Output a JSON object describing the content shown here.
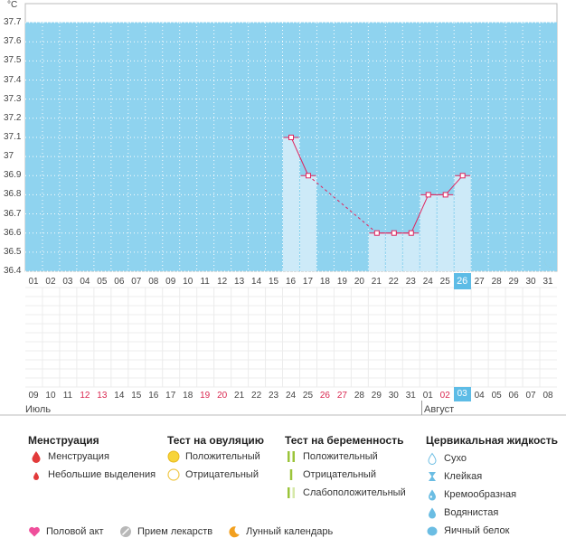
{
  "chart_data": {
    "type": "line",
    "ylabel": "°C",
    "y_ticks": [
      "37.7",
      "37.6",
      "37.5",
      "37.4",
      "37.3",
      "37.2",
      "37.1",
      "37",
      "36.9",
      "36.8",
      "36.7",
      "36.6",
      "36.5",
      "36.4"
    ],
    "ylim": [
      36.4,
      37.8
    ],
    "x_days": [
      "01",
      "02",
      "03",
      "04",
      "05",
      "06",
      "07",
      "08",
      "09",
      "10",
      "11",
      "12",
      "13",
      "14",
      "15",
      "16",
      "17",
      "18",
      "19",
      "20",
      "21",
      "22",
      "23",
      "24",
      "25",
      "26",
      "27",
      "28",
      "29",
      "30",
      "31"
    ],
    "selected_day_index": 25,
    "temperatures": [
      {
        "day": "16",
        "value": 37.1
      },
      {
        "day": "17",
        "value": 36.9
      },
      {
        "day": "21",
        "value": 36.6
      },
      {
        "day": "22",
        "value": 36.6
      },
      {
        "day": "23",
        "value": 36.6
      },
      {
        "day": "24",
        "value": 36.8
      },
      {
        "day": "25",
        "value": 36.8
      },
      {
        "day": "26",
        "value": 36.9
      }
    ],
    "dashed_between": [
      [
        "17",
        "21"
      ]
    ],
    "dates_row": [
      "09",
      "10",
      "11",
      "12",
      "13",
      "14",
      "15",
      "16",
      "17",
      "18",
      "19",
      "20",
      "21",
      "22",
      "23",
      "24",
      "25",
      "26",
      "27",
      "28",
      "29",
      "30",
      "31",
      "01",
      "02",
      "03",
      "04",
      "05",
      "06",
      "07",
      "08"
    ],
    "red_date_indices": [
      3,
      4,
      10,
      11,
      17,
      18,
      24
    ],
    "selected_date_index": 25,
    "month_labels": [
      {
        "label": "Июль",
        "start_index": 0
      },
      {
        "label": "Август",
        "start_index": 23
      }
    ],
    "grid": true
  },
  "colors": {
    "band": "#8fd3ef",
    "bar": "#cdeaf8",
    "line": "#e0245e",
    "selected": "#5dbce6",
    "red_date": "#d9264f",
    "moon": "#f2a01f"
  },
  "legend": {
    "menstruation": {
      "title": "Менструация",
      "items": [
        {
          "label": "Менструация",
          "icon": "drop-red-icon"
        },
        {
          "label": "Небольшие выделения",
          "icon": "small-drop-red-icon"
        }
      ]
    },
    "ovulation": {
      "title": "Тест на овуляцию",
      "items": [
        {
          "label": "Положительный",
          "icon": "filled-circle-yellow-icon"
        },
        {
          "label": "Отрицательный",
          "icon": "outline-circle-yellow-icon"
        }
      ]
    },
    "pregnancy": {
      "title": "Тест на беременность",
      "items": [
        {
          "label": "Положительный",
          "icon": "two-bars-green-icon"
        },
        {
          "label": "Отрицательный",
          "icon": "one-bar-green-icon"
        },
        {
          "label": "Слабоположительный",
          "icon": "faint-bars-green-icon"
        }
      ]
    },
    "cervical": {
      "title": "Цервикальная жидкость",
      "items": [
        {
          "label": "Сухо",
          "icon": "outline-drop-icon"
        },
        {
          "label": "Клейкая",
          "icon": "sticky-icon"
        },
        {
          "label": "Кремообразная",
          "icon": "creamy-drop-icon"
        },
        {
          "label": "Водянистая",
          "icon": "watery-drop-icon"
        },
        {
          "label": "Яичный белок",
          "icon": "eggwhite-drop-icon"
        }
      ]
    },
    "bottom": [
      {
        "label": "Половой акт",
        "icon": "heart-icon"
      },
      {
        "label": "Прием лекарств",
        "icon": "pill-icon"
      },
      {
        "label": "Лунный календарь",
        "icon": "moon-icon"
      }
    ]
  }
}
